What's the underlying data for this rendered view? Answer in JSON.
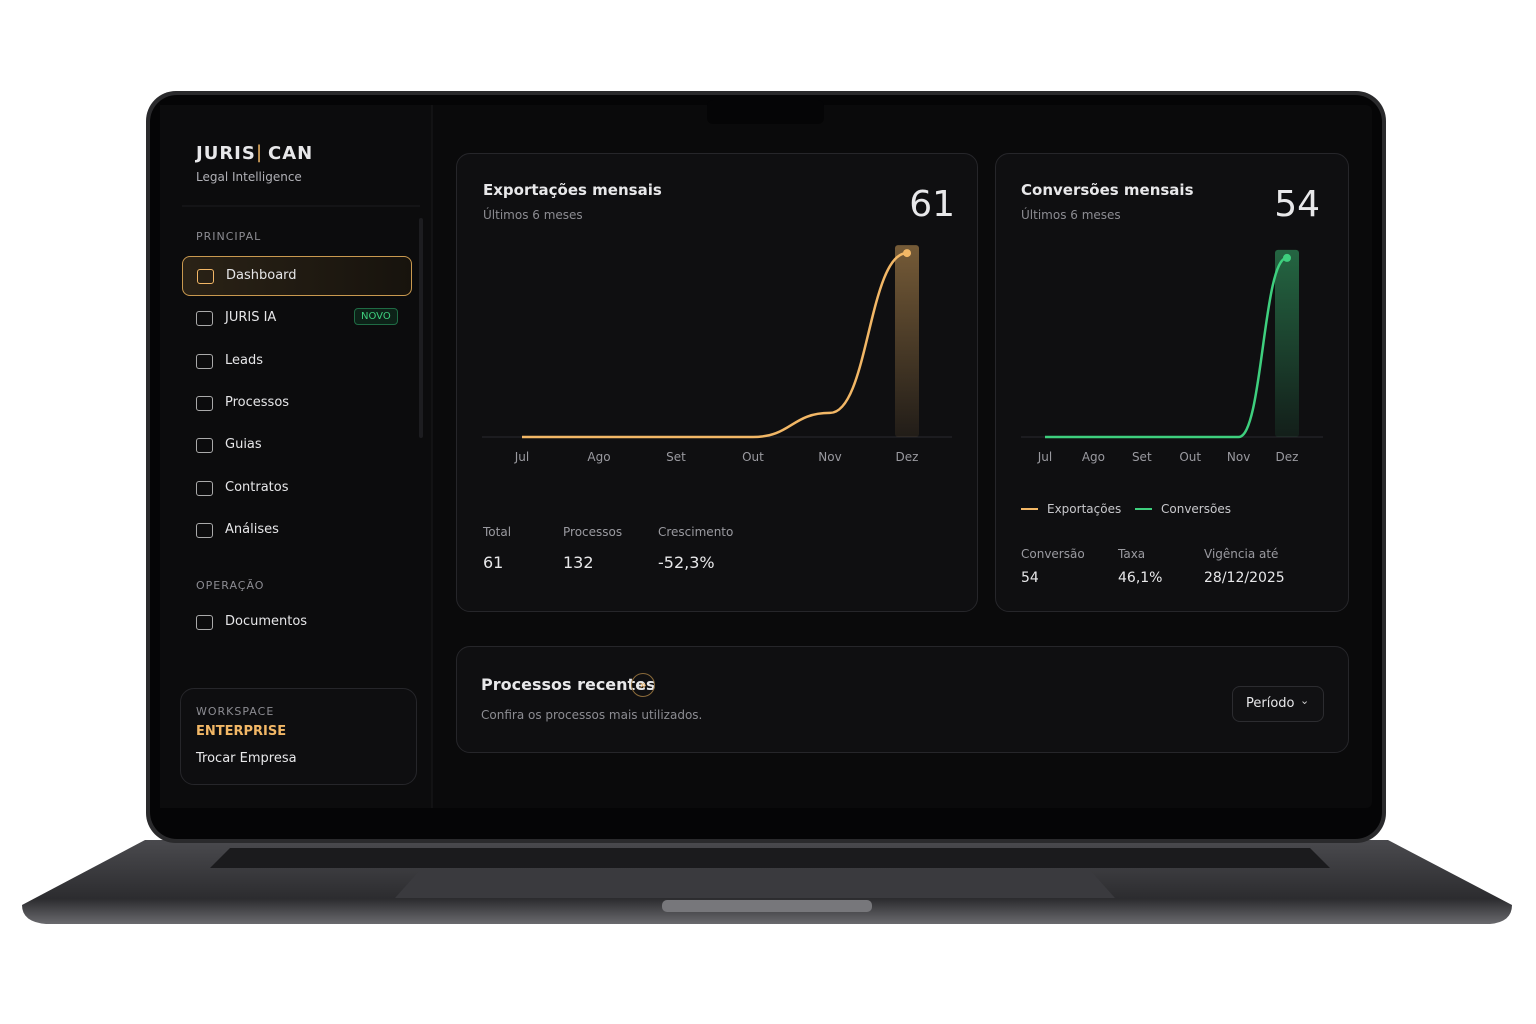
{
  "brand": {
    "name_left": "JURIS",
    "name_right": "CAN",
    "tagline": "Legal Intelligence"
  },
  "sidebar": {
    "sections": [
      {
        "title": "PRINCIPAL",
        "items": [
          {
            "label": "Dashboard"
          },
          {
            "label": "JURIS IA",
            "badge": "NOVO"
          },
          {
            "label": "Leads"
          },
          {
            "label": "Processos"
          },
          {
            "label": "Guias"
          },
          {
            "label": "Contratos"
          },
          {
            "label": "Análises"
          }
        ]
      },
      {
        "title": "OPERAÇÃO",
        "items": [
          {
            "label": "Documentos"
          }
        ]
      }
    ],
    "workspace": {
      "label": "WORKSPACE",
      "plan": "ENTERPRISE",
      "action": "Trocar Empresa"
    }
  },
  "chart_data": [
    {
      "type": "line",
      "title": "Exportações mensais",
      "subtitle": "Últimos 6 meses",
      "headline": 61,
      "categories": [
        "Jul",
        "Ago",
        "Set",
        "Out",
        "Nov",
        "Dez"
      ],
      "values": [
        0,
        0,
        0,
        0,
        8,
        61
      ],
      "color": "#f2b766",
      "ylim": [
        0,
        66
      ]
    },
    {
      "type": "line",
      "title": "Conversões mensais",
      "subtitle": "Últimos 6 meses",
      "headline": 54,
      "categories": [
        "Jul",
        "Ago",
        "Set",
        "Out",
        "Nov",
        "Dez"
      ],
      "series": [
        {
          "name": "Exportações",
          "color": "#f2b766",
          "values": [
            null,
            null,
            null,
            null,
            null,
            null
          ]
        },
        {
          "name": "Conversões",
          "color": "#3ecf7e",
          "values": [
            0,
            0,
            0,
            0,
            0,
            54
          ]
        }
      ],
      "ylim": [
        0,
        60
      ]
    }
  ],
  "export_stats": [
    {
      "label": "Total",
      "value": "61"
    },
    {
      "label": "Processos",
      "value": "132"
    },
    {
      "label": "Crescimento",
      "value": "-52,3%"
    }
  ],
  "conversion_stats": [
    {
      "label": "Conversão",
      "value": "54"
    },
    {
      "label": "Taxa",
      "value": "46,1%"
    },
    {
      "label": "Vigência até",
      "value": "28/12/2025"
    }
  ],
  "recent": {
    "title": "Processos recentes",
    "subtitle": "Confira os processos mais utilizados.",
    "button": "Período"
  }
}
